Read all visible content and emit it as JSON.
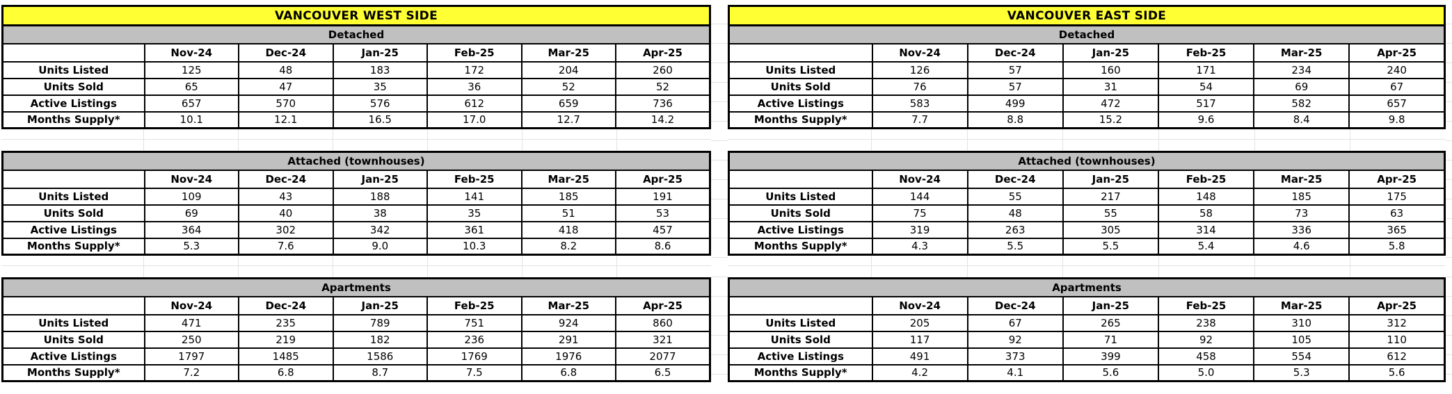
{
  "months": [
    "Nov-24",
    "Dec-24",
    "Jan-25",
    "Feb-25",
    "Mar-25",
    "Apr-25"
  ],
  "row_labels": [
    "Units Listed",
    "Units Sold",
    "Active Listings",
    "Months Supply*"
  ],
  "colors": {
    "title_bg": "#FFFF33",
    "section_header_bg": "#C0C0C0",
    "border": "#000000",
    "grid_line": "#E2E2E2",
    "text": "#000000"
  },
  "tables": [
    {
      "id": "west",
      "title": "VANCOUVER WEST SIDE",
      "sections": [
        {
          "name": "Detached",
          "rows": [
            {
              "label": "Units Listed",
              "values": [
                "125",
                "48",
                "183",
                "172",
                "204",
                "260"
              ]
            },
            {
              "label": "Units Sold",
              "values": [
                "65",
                "47",
                "35",
                "36",
                "52",
                "52"
              ]
            },
            {
              "label": "Active Listings",
              "values": [
                "657",
                "570",
                "576",
                "612",
                "659",
                "736"
              ]
            },
            {
              "label": "Months Supply*",
              "values": [
                "10.1",
                "12.1",
                "16.5",
                "17.0",
                "12.7",
                "14.2"
              ]
            }
          ]
        },
        {
          "name": "Attached (townhouses)",
          "rows": [
            {
              "label": "Units Listed",
              "values": [
                "109",
                "43",
                "188",
                "141",
                "185",
                "191"
              ]
            },
            {
              "label": "Units Sold",
              "values": [
                "69",
                "40",
                "38",
                "35",
                "51",
                "53"
              ]
            },
            {
              "label": "Active Listings",
              "values": [
                "364",
                "302",
                "342",
                "361",
                "418",
                "457"
              ]
            },
            {
              "label": "Months Supply*",
              "values": [
                "5.3",
                "7.6",
                "9.0",
                "10.3",
                "8.2",
                "8.6"
              ]
            }
          ]
        },
        {
          "name": "Apartments",
          "rows": [
            {
              "label": "Units Listed",
              "values": [
                "471",
                "235",
                "789",
                "751",
                "924",
                "860"
              ]
            },
            {
              "label": "Units Sold",
              "values": [
                "250",
                "219",
                "182",
                "236",
                "291",
                "321"
              ]
            },
            {
              "label": "Active Listings",
              "values": [
                "1797",
                "1485",
                "1586",
                "1769",
                "1976",
                "2077"
              ]
            },
            {
              "label": "Months Supply*",
              "values": [
                "7.2",
                "6.8",
                "8.7",
                "7.5",
                "6.8",
                "6.5"
              ]
            }
          ]
        }
      ]
    },
    {
      "id": "east",
      "title": "VANCOUVER EAST SIDE",
      "sections": [
        {
          "name": "Detached",
          "rows": [
            {
              "label": "Units Listed",
              "values": [
                "126",
                "57",
                "160",
                "171",
                "234",
                "240"
              ]
            },
            {
              "label": "Units Sold",
              "values": [
                "76",
                "57",
                "31",
                "54",
                "69",
                "67"
              ]
            },
            {
              "label": "Active Listings",
              "values": [
                "583",
                "499",
                "472",
                "517",
                "582",
                "657"
              ]
            },
            {
              "label": "Months Supply*",
              "values": [
                "7.7",
                "8.8",
                "15.2",
                "9.6",
                "8.4",
                "9.8"
              ]
            }
          ]
        },
        {
          "name": "Attached (townhouses)",
          "rows": [
            {
              "label": "Units Listed",
              "values": [
                "144",
                "55",
                "217",
                "148",
                "185",
                "175"
              ]
            },
            {
              "label": "Units Sold",
              "values": [
                "75",
                "48",
                "55",
                "58",
                "73",
                "63"
              ]
            },
            {
              "label": "Active Listings",
              "values": [
                "319",
                "263",
                "305",
                "314",
                "336",
                "365"
              ]
            },
            {
              "label": "Months Supply*",
              "values": [
                "4.3",
                "5.5",
                "5.5",
                "5.4",
                "4.6",
                "5.8"
              ]
            }
          ]
        },
        {
          "name": "Apartments",
          "rows": [
            {
              "label": "Units Listed",
              "values": [
                "205",
                "67",
                "265",
                "238",
                "310",
                "312"
              ]
            },
            {
              "label": "Units Sold",
              "values": [
                "117",
                "92",
                "71",
                "92",
                "105",
                "110"
              ]
            },
            {
              "label": "Active Listings",
              "values": [
                "491",
                "373",
                "399",
                "458",
                "554",
                "612"
              ]
            },
            {
              "label": "Months Supply*",
              "values": [
                "4.2",
                "4.1",
                "5.6",
                "5.0",
                "5.3",
                "5.6"
              ]
            }
          ]
        }
      ]
    }
  ]
}
